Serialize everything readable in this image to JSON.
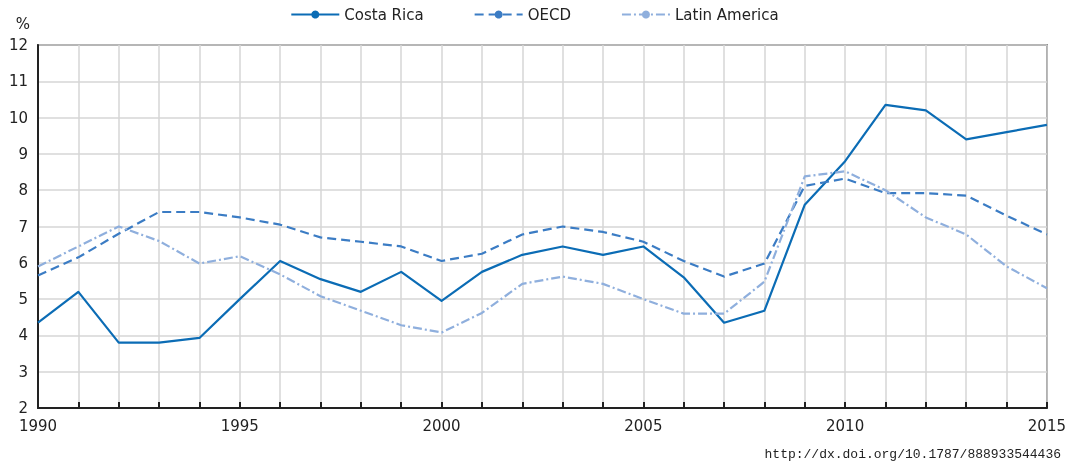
{
  "chart_data": {
    "type": "line",
    "ylabel": "%",
    "x": [
      1990,
      1991,
      1992,
      1993,
      1994,
      1995,
      1996,
      1997,
      1998,
      1999,
      2000,
      2001,
      2002,
      2003,
      2004,
      2005,
      2006,
      2007,
      2008,
      2009,
      2010,
      2011,
      2012,
      2013,
      2014,
      2015
    ],
    "series": [
      {
        "name": "Costa Rica",
        "color": "#0b6cb5",
        "line_style": "solid",
        "values": [
          4.35,
          5.2,
          3.8,
          3.8,
          3.93,
          5.0,
          6.05,
          5.55,
          5.2,
          5.75,
          4.95,
          5.75,
          6.22,
          6.45,
          6.22,
          6.45,
          5.6,
          4.35,
          4.68,
          7.6,
          8.8,
          10.35,
          10.2,
          9.4,
          9.6,
          9.8
        ]
      },
      {
        "name": "OECD",
        "color": "#3b7cc4",
        "line_style": "dashed",
        "values": [
          5.65,
          6.15,
          6.8,
          7.4,
          7.4,
          7.25,
          7.05,
          6.7,
          6.58,
          6.45,
          6.05,
          6.25,
          6.78,
          7.0,
          6.85,
          6.58,
          6.05,
          5.62,
          5.98,
          8.12,
          8.32,
          7.92,
          7.92,
          7.85,
          7.3,
          6.78
        ]
      },
      {
        "name": "Latin America",
        "color": "#8fafdd",
        "line_style": "dashdot",
        "values": [
          5.9,
          6.45,
          7.0,
          6.6,
          5.98,
          6.18,
          5.68,
          5.08,
          4.68,
          4.28,
          4.08,
          4.62,
          5.42,
          5.62,
          5.42,
          5.0,
          4.6,
          4.6,
          5.48,
          8.38,
          8.52,
          8.0,
          7.25,
          6.78,
          5.9,
          5.3
        ]
      }
    ],
    "xlim": [
      1990,
      2015
    ],
    "xticks": [
      1990,
      {
        "value": 1991,
        "label": null
      },
      {
        "value": 1992,
        "label": null
      },
      {
        "value": 1993,
        "label": null
      },
      {
        "value": 1994,
        "label": null
      },
      1995,
      {
        "value": 1996,
        "label": null
      },
      {
        "value": 1997,
        "label": null
      },
      {
        "value": 1998,
        "label": null
      },
      {
        "value": 1999,
        "label": null
      },
      2000,
      {
        "value": 2001,
        "label": null
      },
      {
        "value": 2002,
        "label": null
      },
      {
        "value": 2003,
        "label": null
      },
      {
        "value": 2004,
        "label": null
      },
      2005,
      {
        "value": 2006,
        "label": null
      },
      {
        "value": 2007,
        "label": null
      },
      {
        "value": 2008,
        "label": null
      },
      {
        "value": 2009,
        "label": null
      },
      2010,
      {
        "value": 2011,
        "label": null
      },
      {
        "value": 2012,
        "label": null
      },
      {
        "value": 2013,
        "label": null
      },
      {
        "value": 2014,
        "label": null
      },
      2015
    ],
    "ylim": [
      2,
      12
    ],
    "yticks": [
      2,
      3,
      4,
      5,
      6,
      7,
      8,
      9,
      10,
      11,
      12
    ],
    "grid": true,
    "legend": "top",
    "marker": "none",
    "annotations": [
      "http://dx.doi.org/10.1787/888933544436"
    ]
  }
}
